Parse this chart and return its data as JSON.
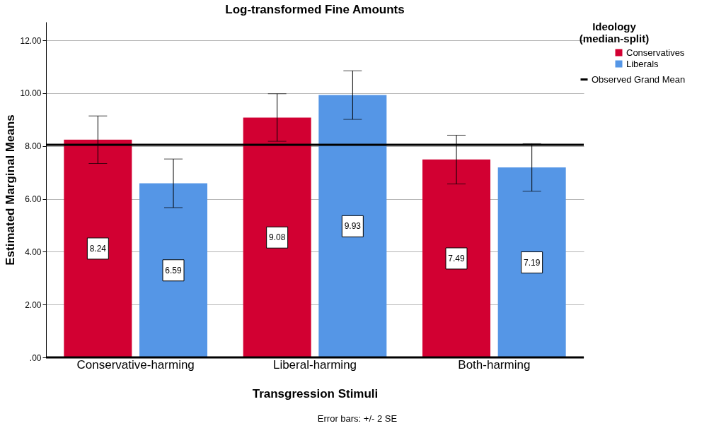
{
  "chart_data": {
    "type": "bar",
    "title": "Log-transformed Fine Amounts",
    "xlabel": "Transgression Stimuli",
    "ylabel": "Estimated Marginal Means",
    "legend_title": "Ideology\n(median-split)",
    "categories": [
      "Conservative-harming",
      "Liberal-harming",
      "Both-harming"
    ],
    "series": [
      {
        "name": "Conservatives",
        "color": "#d20032",
        "values": [
          8.24,
          9.08,
          7.49
        ],
        "errors": [
          0.9,
          0.9,
          0.92
        ]
      },
      {
        "name": "Liberals",
        "color": "#5596e6",
        "values": [
          6.59,
          9.93,
          7.19
        ],
        "errors": [
          0.92,
          0.92,
          0.9
        ]
      }
    ],
    "ylim": [
      0,
      12.7
    ],
    "yticks": [
      {
        "value": 0,
        "label": ".00"
      },
      {
        "value": 2,
        "label": "2.00"
      },
      {
        "value": 4,
        "label": "4.00"
      },
      {
        "value": 6,
        "label": "6.00"
      },
      {
        "value": 8,
        "label": "8.00"
      },
      {
        "value": 10,
        "label": "10.00"
      },
      {
        "value": 12,
        "label": "12.00"
      }
    ],
    "ref_lines": [
      {
        "axis": "y",
        "value": 8.05,
        "label": "Observed Grand Mean",
        "color": "#000000"
      }
    ],
    "data_labels": true,
    "grid": "y",
    "legend": "top right",
    "annotations": [
      "Error bars: +/- 2 SE"
    ]
  }
}
